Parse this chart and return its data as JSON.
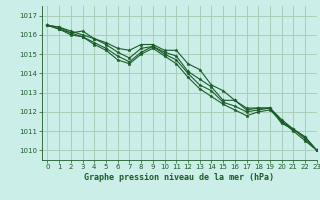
{
  "title": "Graphe pression niveau de la mer (hPa)",
  "background_color": "#cceee8",
  "grid_color": "#aaccbb",
  "line_color": "#1a5c28",
  "xlim": [
    -0.5,
    23
  ],
  "ylim": [
    1009.5,
    1017.5
  ],
  "yticks": [
    1010,
    1011,
    1012,
    1013,
    1014,
    1015,
    1016,
    1017
  ],
  "xticks": [
    0,
    1,
    2,
    3,
    4,
    5,
    6,
    7,
    8,
    9,
    10,
    11,
    12,
    13,
    14,
    15,
    16,
    17,
    18,
    19,
    20,
    21,
    22,
    23
  ],
  "series": [
    [
      1016.5,
      1016.4,
      1016.1,
      1016.2,
      1015.8,
      1015.6,
      1015.3,
      1015.2,
      1015.5,
      1015.5,
      1015.2,
      1015.2,
      1014.5,
      1014.2,
      1013.4,
      1013.1,
      1012.6,
      1012.2,
      1012.2,
      1012.2,
      1011.4,
      1011.1,
      1010.7,
      1010.0
    ],
    [
      1016.5,
      1016.4,
      1016.2,
      1016.0,
      1015.8,
      1015.5,
      1015.1,
      1014.8,
      1015.3,
      1015.4,
      1015.1,
      1014.9,
      1014.1,
      1013.7,
      1013.3,
      1012.6,
      1012.6,
      1012.1,
      1012.2,
      1012.2,
      1011.5,
      1011.1,
      1010.7,
      1010.0
    ],
    [
      1016.5,
      1016.3,
      1016.1,
      1015.9,
      1015.6,
      1015.3,
      1014.9,
      1014.6,
      1015.1,
      1015.4,
      1015.0,
      1014.7,
      1014.0,
      1013.4,
      1013.1,
      1012.5,
      1012.3,
      1012.0,
      1012.1,
      1012.2,
      1011.6,
      1011.1,
      1010.6,
      1010.0
    ],
    [
      1016.5,
      1016.3,
      1016.0,
      1015.9,
      1015.5,
      1015.2,
      1014.7,
      1014.5,
      1015.0,
      1015.3,
      1014.9,
      1014.5,
      1013.8,
      1013.2,
      1012.8,
      1012.4,
      1012.1,
      1011.8,
      1012.0,
      1012.1,
      1011.5,
      1011.0,
      1010.5,
      1010.0
    ]
  ]
}
